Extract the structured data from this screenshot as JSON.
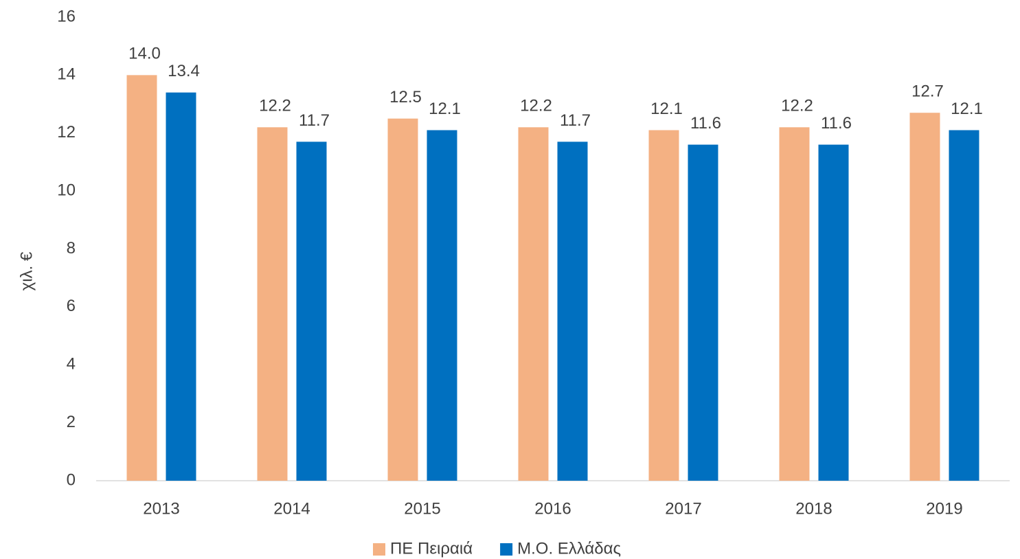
{
  "chart_data": {
    "type": "bar",
    "y_label": "χιλ. €",
    "categories": [
      "2013",
      "2014",
      "2015",
      "2016",
      "2017",
      "2018",
      "2019"
    ],
    "series": [
      {
        "name": "ΠΕ Πειραιά",
        "color": "#f4b183",
        "values": [
          14.0,
          12.2,
          12.5,
          12.2,
          12.1,
          12.2,
          12.7
        ],
        "value_labels": [
          "14.0",
          "12.2",
          "12.5",
          "12.2",
          "12.1",
          "12.2",
          "12.7"
        ]
      },
      {
        "name": "Μ.Ο. Ελλάδας",
        "color": "#0070c0",
        "values": [
          13.4,
          11.7,
          12.1,
          11.7,
          11.6,
          11.6,
          12.1
        ],
        "value_labels": [
          "13.4",
          "11.7",
          "12.1",
          "11.7",
          "11.6",
          "11.6",
          "12.1"
        ]
      }
    ],
    "ylim": [
      0,
      16
    ],
    "yticks": [
      0,
      2,
      4,
      6,
      8,
      10,
      12,
      14,
      16
    ],
    "grid": false,
    "legend": "bottom"
  }
}
